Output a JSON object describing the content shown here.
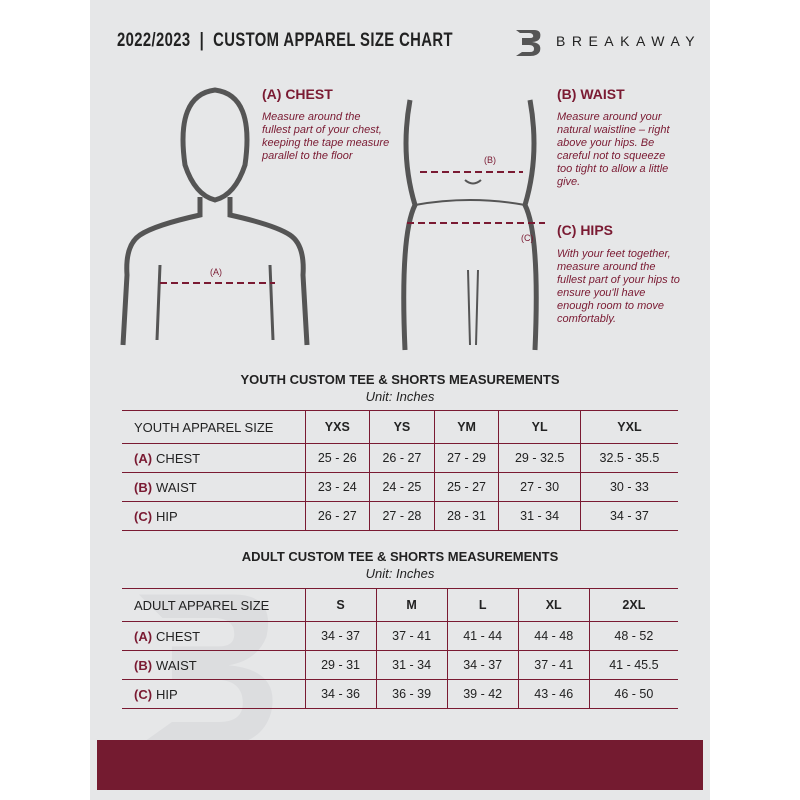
{
  "header": {
    "title": "2022/2023  |  CUSTOM APPAREL SIZE CHART",
    "brand": "BREAKAWAY",
    "logo_letter": "B"
  },
  "measure": {
    "chest": {
      "heading": "(A) CHEST",
      "desc": "Measure around the fullest part of your chest, keeping the tape measure parallel to the floor",
      "marker": "(A)"
    },
    "waist": {
      "heading": "(B) WAIST",
      "desc": "Measure around your natural waistline – right above your hips. Be careful not to squeeze too tight to allow a little give.",
      "marker": "(B)"
    },
    "hips": {
      "heading": "(C) HIPS",
      "desc": "With your feet together, measure around the fullest part of your hips to ensure you'll have enough room to move comfortably.",
      "marker": "(C)"
    }
  },
  "colors": {
    "accent": "#7a1a32",
    "background": "#e6e7e8",
    "footer": "#741b30"
  },
  "youth": {
    "title": "YOUTH CUSTOM TEE & SHORTS MEASUREMENTS",
    "unit": "Unit: Inches",
    "size_label": "YOUTH APPAREL SIZE",
    "sizes": [
      "YXS",
      "YS",
      "YM",
      "YL",
      "YXL"
    ],
    "rows": [
      {
        "letter": "(A)",
        "name": "CHEST",
        "values": [
          "25 - 26",
          "26 - 27",
          "27 - 29",
          "29 - 32.5",
          "32.5 - 35.5"
        ]
      },
      {
        "letter": "(B)",
        "name": "WAIST",
        "values": [
          "23 - 24",
          "24 - 25",
          "25 - 27",
          "27 - 30",
          "30 - 33"
        ]
      },
      {
        "letter": "(C)",
        "name": "HIP",
        "values": [
          "26 - 27",
          "27 - 28",
          "28 - 31",
          "31 - 34",
          "34 - 37"
        ]
      }
    ]
  },
  "adult": {
    "title": "ADULT CUSTOM TEE & SHORTS MEASUREMENTS",
    "unit": "Unit: Inches",
    "size_label": "ADULT APPAREL SIZE",
    "sizes": [
      "S",
      "M",
      "L",
      "XL",
      "2XL"
    ],
    "rows": [
      {
        "letter": "(A)",
        "name": "CHEST",
        "values": [
          "34 - 37",
          "37 - 41",
          "41 - 44",
          "44 - 48",
          "48 - 52"
        ]
      },
      {
        "letter": "(B)",
        "name": "WAIST",
        "values": [
          "29 - 31",
          "31 - 34",
          "34 - 37",
          "37 - 41",
          "41 - 45.5"
        ]
      },
      {
        "letter": "(C)",
        "name": "HIP",
        "values": [
          "34 - 36",
          "36 - 39",
          "39 - 42",
          "43 - 46",
          "46 - 50"
        ]
      }
    ]
  }
}
